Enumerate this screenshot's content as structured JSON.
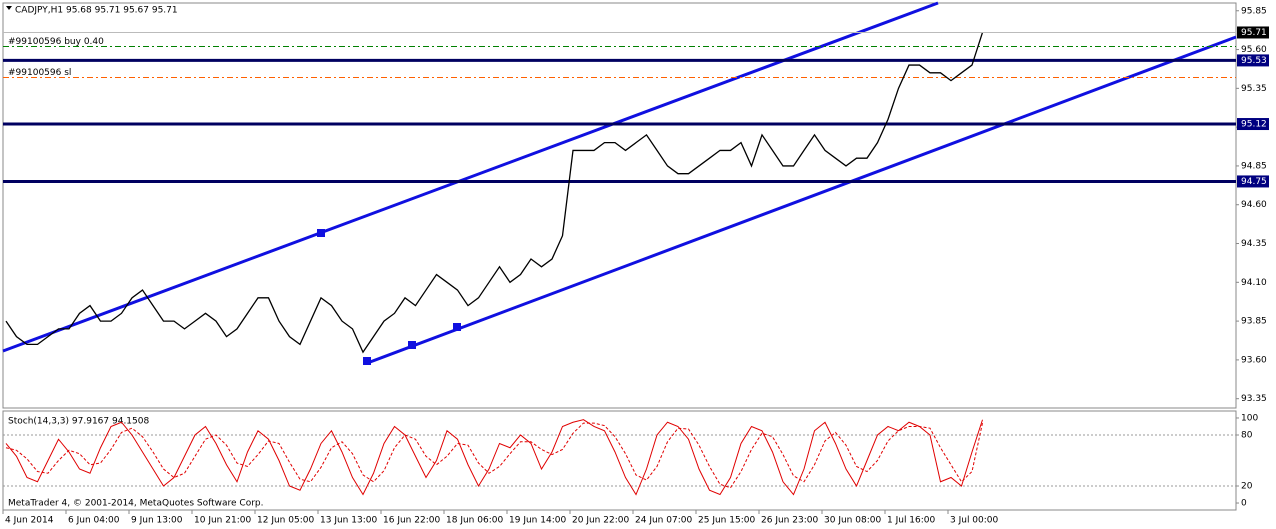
{
  "header": {
    "symbol_info": "CADJPY,H1  95.68 95.71 95.67 95.71"
  },
  "chart_data": [
    {
      "type": "line",
      "categories": [
        "4 Jun 2014",
        null,
        null,
        null,
        null,
        null,
        "6 Jun 04:00",
        null,
        null,
        null,
        null,
        null,
        "9 Jun 13:00",
        null,
        null,
        null,
        null,
        null,
        "10 Jun 21:00",
        null,
        null,
        null,
        null,
        null,
        "12 Jun 05:00",
        null,
        null,
        null,
        null,
        null,
        "13 Jun 13:00",
        null,
        null,
        null,
        null,
        null,
        "16 Jun 22:00",
        null,
        null,
        null,
        null,
        null,
        "18 Jun 06:00",
        null,
        null,
        null,
        null,
        null,
        "19 Jun 14:00",
        null,
        null,
        null,
        null,
        null,
        "20 Jun 22:00",
        null,
        null,
        null,
        null,
        null,
        "24 Jun 07:00",
        null,
        null,
        null,
        null,
        null,
        "25 Jun 15:00",
        null,
        null,
        null,
        null,
        null,
        "26 Jun 23:00",
        null,
        null,
        null,
        null,
        null,
        "30 Jun 08:00",
        null,
        null,
        null,
        null,
        null,
        "1 Jul 16:00",
        null,
        null,
        null,
        null,
        null,
        "3 Jul 00:00",
        null,
        null,
        null
      ],
      "values": [
        93.85,
        93.75,
        93.7,
        93.7,
        93.75,
        93.8,
        93.8,
        93.9,
        93.95,
        93.85,
        93.85,
        93.9,
        94.0,
        94.05,
        93.95,
        93.85,
        93.85,
        93.8,
        93.85,
        93.9,
        93.85,
        93.75,
        93.8,
        93.9,
        94.0,
        94.0,
        93.85,
        93.75,
        93.7,
        93.85,
        94.0,
        93.95,
        93.85,
        93.8,
        93.65,
        93.75,
        93.85,
        93.9,
        94.0,
        93.95,
        94.05,
        94.15,
        94.1,
        94.05,
        93.95,
        94.0,
        94.1,
        94.2,
        94.1,
        94.15,
        94.25,
        94.2,
        94.25,
        94.4,
        94.95,
        94.95,
        94.95,
        95.0,
        95.0,
        94.95,
        95.0,
        95.05,
        94.95,
        94.85,
        94.8,
        94.8,
        94.85,
        94.9,
        94.95,
        94.95,
        95.0,
        94.85,
        95.05,
        94.95,
        94.85,
        94.85,
        94.95,
        95.05,
        94.95,
        94.9,
        94.85,
        94.9,
        94.9,
        95.0,
        95.15,
        95.35,
        95.5,
        95.5,
        95.45,
        95.45,
        95.4,
        95.45,
        95.5,
        95.71
      ],
      "color": "#000000",
      "ylim": [
        93.29,
        95.9
      ],
      "yticks": [
        93.35,
        {
          "value": 93.6,
          "label": "93.60"
        },
        93.85,
        {
          "value": 94.1,
          "label": "94.10"
        },
        94.35,
        {
          "value": 94.6,
          "label": "94.60"
        },
        94.85,
        {
          "value": 95.1,
          "label": "95.10"
        },
        95.35,
        {
          "value": 95.6,
          "label": "95.60"
        },
        95.85
      ],
      "current_price": 95.71,
      "levels": [
        95.53,
        95.12,
        94.75
      ],
      "annotations": [
        {
          "text": "#99100596 buy 0.40",
          "value": 95.62,
          "color": "#008000"
        },
        {
          "text": "#99100596 sl",
          "value": 95.42,
          "color": "#ff6000"
        }
      ]
    },
    {
      "type": "line",
      "title": "Stoch(14,3,3) 97.9167 94.1508",
      "series": [
        {
          "color": "#e00000",
          "values": [
            70,
            55,
            30,
            25,
            50,
            75,
            60,
            40,
            35,
            65,
            90,
            95,
            80,
            60,
            40,
            20,
            30,
            55,
            80,
            90,
            70,
            45,
            25,
            60,
            85,
            75,
            50,
            20,
            15,
            40,
            70,
            85,
            60,
            30,
            10,
            35,
            70,
            90,
            80,
            55,
            30,
            50,
            85,
            75,
            45,
            20,
            40,
            70,
            65,
            80,
            70,
            40,
            60,
            90,
            95,
            98,
            90,
            85,
            60,
            30,
            10,
            40,
            80,
            95,
            90,
            75,
            40,
            15,
            10,
            30,
            70,
            90,
            85,
            60,
            25,
            10,
            40,
            85,
            95,
            70,
            40,
            20,
            50,
            80,
            90,
            85,
            95,
            90,
            80,
            25,
            30,
            20,
            60,
            97.9167
          ]
        },
        {
          "color": "#e00000",
          "dashed": true,
          "values": [
            65,
            62,
            52,
            37,
            35,
            50,
            62,
            58,
            45,
            47,
            63,
            83,
            88,
            78,
            60,
            40,
            30,
            35,
            55,
            75,
            80,
            68,
            47,
            43,
            57,
            73,
            70,
            48,
            28,
            25,
            42,
            65,
            72,
            58,
            33,
            25,
            38,
            65,
            80,
            75,
            55,
            45,
            55,
            70,
            68,
            47,
            35,
            43,
            58,
            72,
            72,
            63,
            57,
            63,
            82,
            94,
            94,
            91,
            78,
            58,
            33,
            27,
            43,
            72,
            88,
            87,
            68,
            43,
            22,
            18,
            37,
            63,
            82,
            78,
            57,
            32,
            25,
            45,
            73,
            83,
            68,
            43,
            37,
            50,
            73,
            85,
            90,
            90,
            88,
            65,
            45,
            25,
            37,
            94.1508
          ]
        }
      ],
      "ylim": [
        -8.2,
        108.2
      ],
      "yticks": [
        0,
        20,
        80,
        100
      ],
      "levels": [
        80,
        20
      ]
    }
  ],
  "footer": {
    "copyright": "MetaTrader 4, © 2001-2014, MetaQuotes Software Corp."
  }
}
